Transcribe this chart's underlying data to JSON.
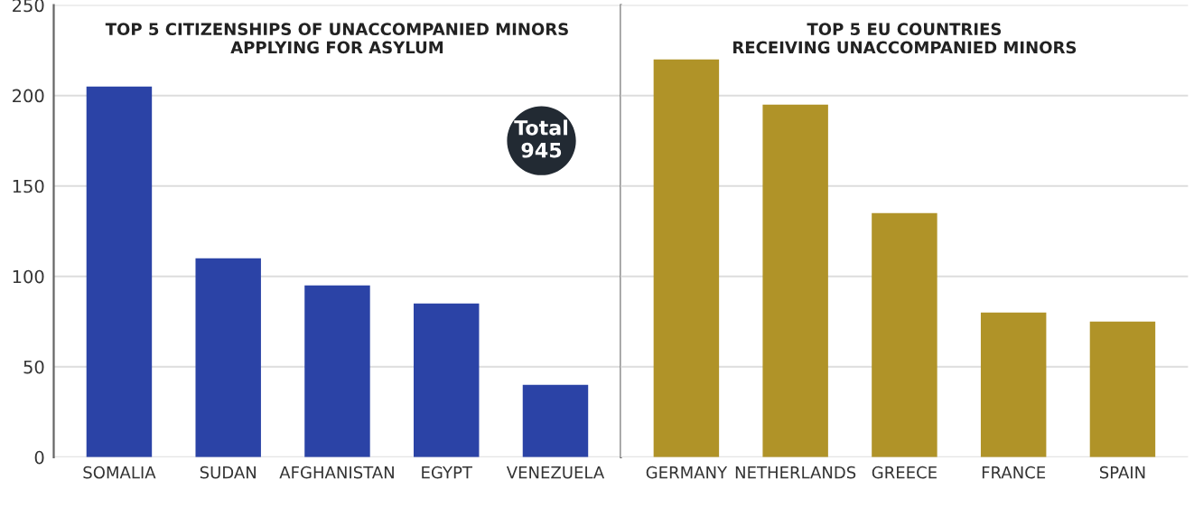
{
  "chart_data": [
    {
      "type": "bar",
      "title": "TOP 5 CITIZENSHIPS OF UNACCOMPANIED MINORS\nAPPLYING FOR ASYLUM",
      "categories": [
        "SOMALIA",
        "SUDAN",
        "AFGHANISTAN",
        "EGYPT",
        "VENEZUELA"
      ],
      "series": [
        {
          "color": "#2b43a6",
          "values": [
            205,
            110,
            95,
            85,
            40
          ]
        }
      ],
      "ylim": [
        0,
        250
      ],
      "yticks": [
        0,
        50,
        100,
        150,
        200,
        250
      ],
      "grid": "y",
      "annotations": [
        "Total\n945"
      ]
    },
    {
      "type": "bar",
      "title": "TOP 5 EU COUNTRIES\nRECEIVING UNACCOMPANIED MINORS",
      "categories": [
        "GERMANY",
        "NETHERLANDS",
        "GREECE",
        "FRANCE",
        "SPAIN"
      ],
      "series": [
        {
          "color": "#b09328",
          "values": [
            220,
            195,
            135,
            80,
            75
          ]
        }
      ],
      "ylim": [
        0,
        250
      ],
      "yticks": [
        0,
        50,
        100,
        150,
        200,
        250
      ],
      "grid": "y",
      "tick_labels": "x"
    }
  ]
}
